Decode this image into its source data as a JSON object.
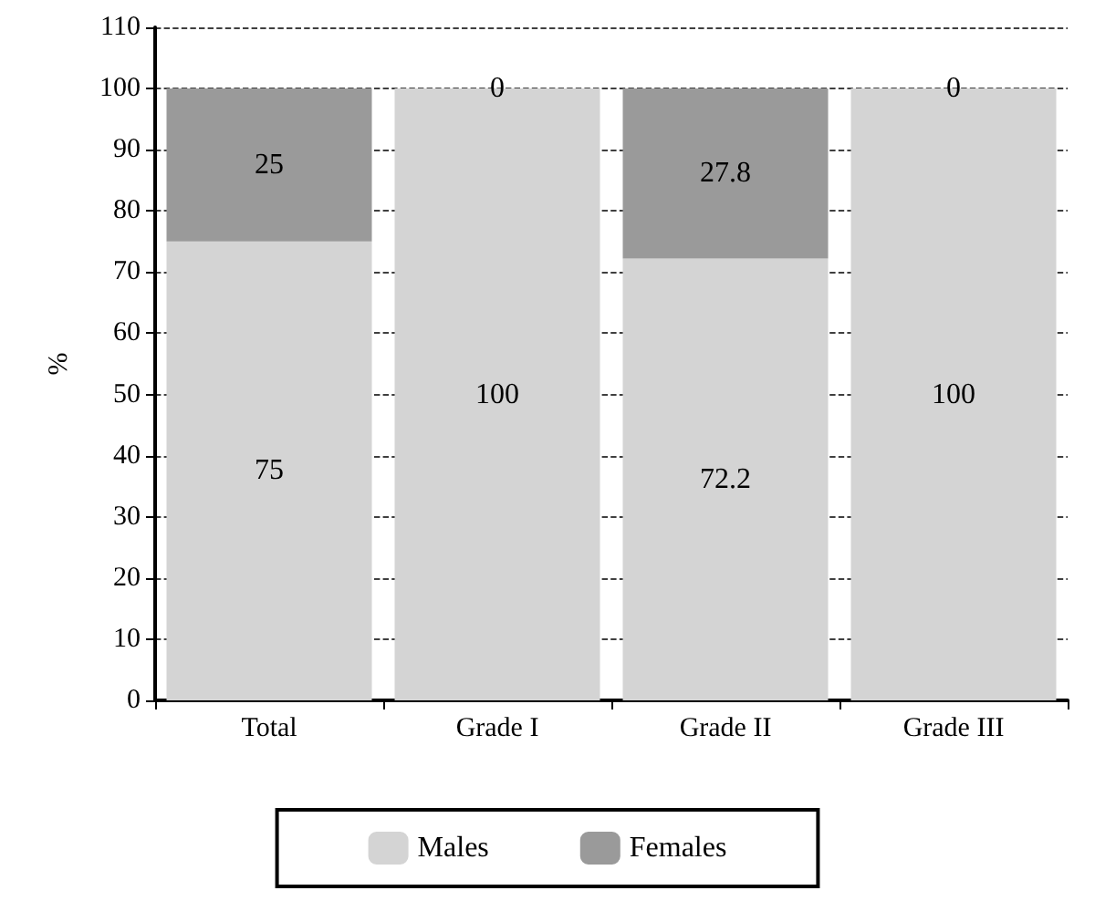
{
  "chart_data": {
    "type": "bar",
    "stacked": true,
    "ylabel": "%",
    "categories": [
      "Total",
      "Grade I",
      "Grade II",
      "Grade III"
    ],
    "series": [
      {
        "name": "Males",
        "color": "#d4d4d4",
        "values": [
          75,
          100,
          72.2,
          100
        ]
      },
      {
        "name": "Females",
        "color": "#9a9a9a",
        "values": [
          25,
          0,
          27.8,
          0
        ]
      }
    ],
    "ylim": [
      0,
      110
    ],
    "yticks": [
      0,
      10,
      20,
      30,
      40,
      50,
      60,
      70,
      80,
      90,
      100,
      110
    ],
    "grid": "y",
    "legend": "bottom",
    "data_labels": true
  }
}
